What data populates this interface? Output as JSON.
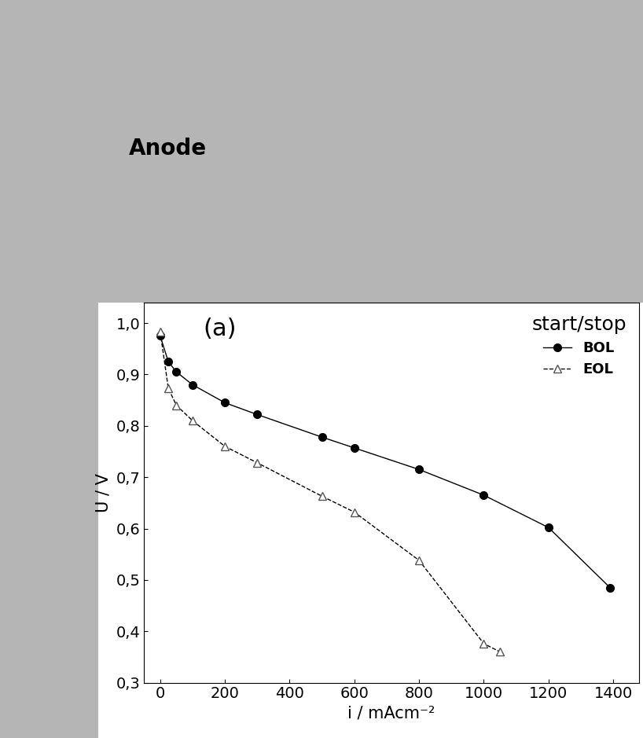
{
  "chart_data": {
    "type": "line",
    "annotations": [
      "Anode",
      "(a)"
    ],
    "legend_title": "start/stop",
    "x_label": "i / mAcm⁻²",
    "y_label": "U / V",
    "series": [
      {
        "name": "BOL",
        "color": "#000000",
        "marker": "o",
        "line_style": "solid",
        "x": [
          0,
          25,
          50,
          100,
          200,
          300,
          500,
          600,
          800,
          1000,
          1200,
          1390
        ],
        "values": [
          0.975,
          0.925,
          0.905,
          0.88,
          0.845,
          0.822,
          0.778,
          0.757,
          0.715,
          0.665,
          0.602,
          0.485
        ]
      },
      {
        "name": "EOL",
        "color": "#555555",
        "marker": "^",
        "line_style": "dashed",
        "x": [
          0,
          25,
          50,
          100,
          200,
          300,
          500,
          600,
          800,
          1000,
          1050
        ],
        "values": [
          0.983,
          0.873,
          0.84,
          0.81,
          0.76,
          0.728,
          0.663,
          0.632,
          0.538,
          0.376,
          0.36
        ]
      }
    ],
    "xlim": [
      -50,
      1480
    ],
    "xticks": [
      0,
      200,
      400,
      600,
      800,
      1000,
      1200,
      1400
    ],
    "ylim": [
      0.3,
      1.04
    ],
    "yticks": [
      {
        "value": 0.3,
        "label": "0,3"
      },
      {
        "value": 0.4,
        "label": "0,4"
      },
      {
        "value": 0.5,
        "label": "0,5"
      },
      {
        "value": 0.6,
        "label": "0,6"
      },
      {
        "value": 0.7,
        "label": "0,7"
      },
      {
        "value": 0.8,
        "label": "0,8"
      },
      {
        "value": 0.9,
        "label": "0,9"
      },
      {
        "value": 1.0,
        "label": "1,0"
      }
    ],
    "legend": "upper right",
    "grid": false
  }
}
